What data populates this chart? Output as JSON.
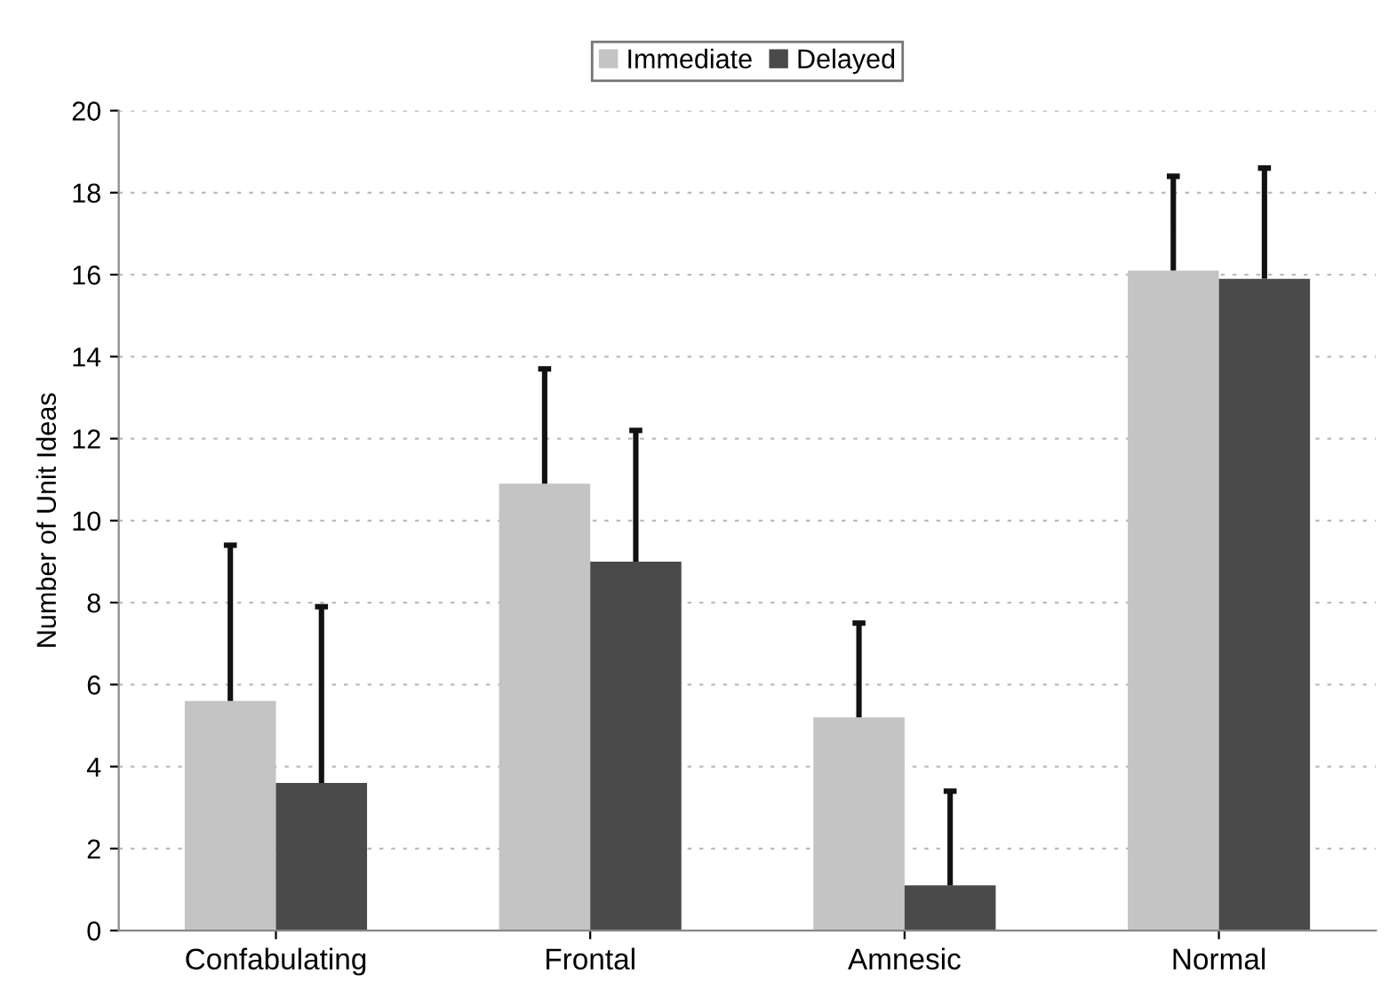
{
  "chart_data": {
    "type": "bar",
    "ylabel": "Number of Unit Ideas",
    "categories": [
      "Confabulating",
      "Frontal",
      "Amnesic",
      "Normal"
    ],
    "series": [
      {
        "name": "Immediate",
        "color": "#c4c4c4",
        "values": [
          5.6,
          10.9,
          5.2,
          16.1
        ],
        "errors": [
          [
            5.6,
            9.4
          ],
          [
            10.9,
            13.7
          ],
          [
            5.2,
            7.5
          ],
          [
            16.1,
            18.4
          ]
        ]
      },
      {
        "name": "Delayed",
        "color": "#4a4a4a",
        "values": [
          3.6,
          9.0,
          1.1,
          15.9
        ],
        "errors": [
          [
            3.6,
            7.9
          ],
          [
            9.0,
            12.2
          ],
          [
            1.1,
            3.4
          ],
          [
            15.9,
            18.6
          ]
        ]
      }
    ],
    "ylim": [
      0,
      20
    ],
    "yticks": [
      0,
      2,
      4,
      6,
      8,
      10,
      12,
      14,
      16,
      18,
      20
    ],
    "grid": "y",
    "legend": "top"
  }
}
